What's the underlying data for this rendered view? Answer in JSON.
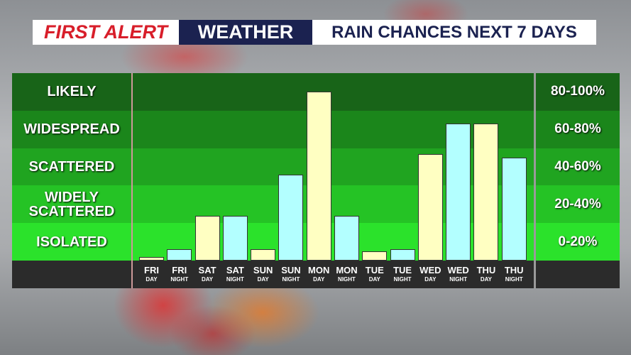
{
  "chart_data": {
    "type": "bar",
    "brand": [
      "FIRST ALERT",
      "WEATHER"
    ],
    "title": "RAIN CHANCES NEXT 7 DAYS",
    "categories": [
      [
        "FRI",
        "DAY"
      ],
      [
        "FRI",
        "NIGHT"
      ],
      [
        "SAT",
        "DAY"
      ],
      [
        "SAT",
        "NIGHT"
      ],
      [
        "SUN",
        "DAY"
      ],
      [
        "SUN",
        "NIGHT"
      ],
      [
        "MON",
        "DAY"
      ],
      [
        "MON",
        "NIGHT"
      ],
      [
        "TUE",
        "DAY"
      ],
      [
        "TUE",
        "NIGHT"
      ],
      [
        "WED",
        "DAY"
      ],
      [
        "WED",
        "NIGHT"
      ],
      [
        "THU",
        "DAY"
      ],
      [
        "THU",
        "NIGHT"
      ]
    ],
    "values": [
      2,
      6,
      24,
      24,
      6,
      46,
      90,
      24,
      5,
      6,
      57,
      73,
      73,
      55
    ],
    "colors": [
      "#ffffc2",
      "#b3ffff",
      "#ffffc2",
      "#b3ffff",
      "#ffffc2",
      "#b3ffff",
      "#ffffc2",
      "#b3ffff",
      "#ffffc2",
      "#b3ffff",
      "#ffffc2",
      "#b3ffff",
      "#ffffc2",
      "#b3ffff"
    ],
    "ylim": [
      0,
      100
    ],
    "yticks": [
      0,
      20,
      40,
      60,
      80,
      100
    ],
    "bands": [
      {
        "label": "ISOLATED",
        "range": "0-20%",
        "color": "#2be22b"
      },
      {
        "label": "WIDELY SCATTERED",
        "range": "20-40%",
        "color": "#25c325"
      },
      {
        "label": "SCATTERED",
        "range": "40-60%",
        "color": "#20a420"
      },
      {
        "label": "WIDESPREAD",
        "range": "60-80%",
        "color": "#1b861b"
      },
      {
        "label": "LIKELY",
        "range": "80-100%",
        "color": "#186418"
      }
    ]
  }
}
